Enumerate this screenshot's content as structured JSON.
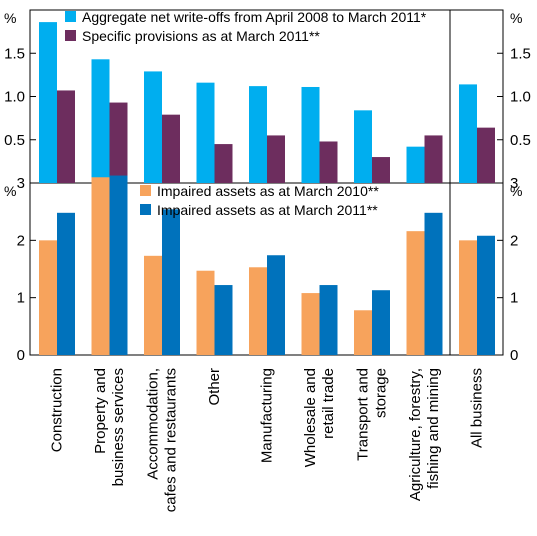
{
  "chart_data": [
    {
      "type": "bar",
      "unit_left": "%",
      "unit_right": "%",
      "ylim": [
        0,
        2.0
      ],
      "yticks": [
        "0.5",
        "1.0",
        "1.5"
      ],
      "legend_position": "top",
      "categories": [
        "Construction",
        "Property and business services",
        "Accommodation, cafes and restaurants",
        "Other",
        "Manufacturing",
        "Wholesale and retail trade",
        "Transport and storage",
        "Agriculture, forestry, fishing and mining",
        "All business"
      ],
      "series": [
        {
          "name": "Aggregate net write-offs from April 2008 to March 2011*",
          "color": "#00AEEF",
          "values": [
            1.86,
            1.43,
            1.29,
            1.16,
            1.12,
            1.11,
            0.84,
            0.42,
            1.14
          ]
        },
        {
          "name": "Specific provisions as at March 2011**",
          "color": "#6D2D5E",
          "values": [
            1.07,
            0.93,
            0.79,
            0.45,
            0.55,
            0.48,
            0.3,
            0.55,
            0.64
          ]
        }
      ]
    },
    {
      "type": "bar",
      "unit_left": "%",
      "unit_right": "%",
      "ylim": [
        0,
        3.0
      ],
      "yticks": [
        "0",
        "1",
        "2",
        "3"
      ],
      "legend_position": "top",
      "categories": [
        "Construction",
        "Property and business services",
        "Accommodation, cafes and restaurants",
        "Other",
        "Manufacturing",
        "Wholesale and retail trade",
        "Transport and storage",
        "Agriculture, forestry, fishing and mining",
        "All business"
      ],
      "series": [
        {
          "name": "Impaired assets as at March 2010**",
          "color": "#F7A35C",
          "values": [
            2.0,
            3.1,
            1.73,
            1.47,
            1.53,
            1.08,
            0.78,
            2.16,
            2.0
          ]
        },
        {
          "name": "Impaired assets as at March 2011**",
          "color": "#0072BC",
          "values": [
            2.48,
            3.13,
            2.54,
            1.22,
            1.74,
            1.22,
            1.13,
            2.48,
            2.08
          ]
        }
      ]
    }
  ],
  "category_label_lines": [
    [
      "Construction"
    ],
    [
      "Property and",
      "business services"
    ],
    [
      "Accommodation,",
      "cafes and restaurants"
    ],
    [
      "Other"
    ],
    [
      "Manufacturing"
    ],
    [
      "Wholesale and",
      "retail trade"
    ],
    [
      "Transport and",
      "storage"
    ],
    [
      "Agriculture, forestry,",
      "fishing and mining"
    ],
    [
      "All business"
    ]
  ]
}
